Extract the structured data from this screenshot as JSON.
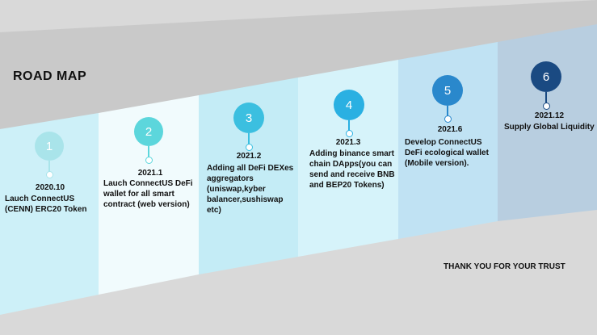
{
  "title": "ROAD MAP",
  "footer": "THANK YOU FOR YOUR TRUST",
  "milestones": [
    {
      "number": "1",
      "year": "2020.10",
      "lines": [
        "Lauch ConnectUS",
        "(CENN) ERC20 Token"
      ],
      "color": "#a9e4ea"
    },
    {
      "number": "2",
      "year": "2021.1",
      "lines": [
        "Lauch ConnectUS DeFi",
        "wallet for all smart",
        "contract (web version)"
      ],
      "color": "#5cd6dc"
    },
    {
      "number": "3",
      "year": "2021.2",
      "lines": [
        "Adding all DeFi DEXes",
        "aggregators",
        "(uniswap,kyber",
        "balancer,sushiswap",
        "etc)"
      ],
      "color": "#3bbfe0"
    },
    {
      "number": "4",
      "year": "2021.3",
      "lines": [
        "Adding binance smart",
        "chain DApps(you can",
        "send and receive BNB",
        "and BEP20 Tokens)"
      ],
      "color": "#2ab0e2"
    },
    {
      "number": "5",
      "year": "2021.6",
      "lines": [
        "Develop ConnectUS",
        "DeFi ecological wallet",
        "(Mobile version)."
      ],
      "color": "#2a88cc"
    },
    {
      "number": "6",
      "year": "2021.12",
      "lines": [
        "Supply Global Liquidity"
      ],
      "color": "#1a4a82"
    }
  ]
}
